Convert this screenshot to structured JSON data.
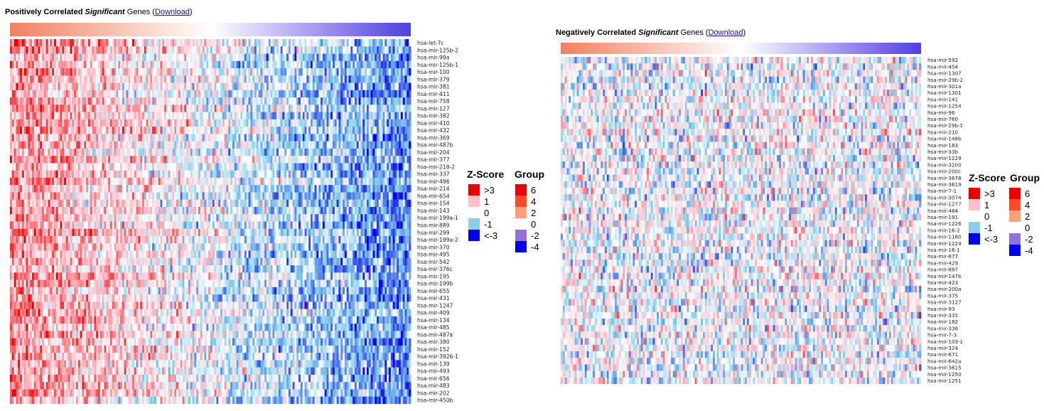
{
  "panels": [
    {
      "title_pre": "Positively Correlated ",
      "title_em": "Significant",
      "title_post": " Genes",
      "download_label": "Download"
    },
    {
      "title_pre": "Negatively Correlated ",
      "title_em": "Significant",
      "title_post": " Genes",
      "download_label": "Download"
    }
  ],
  "legend": {
    "zscore_title": "Z-Score",
    "group_title": "Group",
    "zscore_items": [
      {
        "label": ">3",
        "color": "#ee0000"
      },
      {
        "label": "1",
        "color": "#ffc0cb"
      },
      {
        "label": "0",
        "color": "#ffffff"
      },
      {
        "label": "-1",
        "color": "#87ceeb"
      },
      {
        "label": "<-3",
        "color": "#0000ee"
      }
    ],
    "group_items": [
      {
        "label": "6",
        "color": "#ee0000"
      },
      {
        "label": "4",
        "color": "#ff4a2a"
      },
      {
        "label": "2",
        "color": "#ffa07a"
      },
      {
        "label": "0",
        "color": "#ffffff"
      },
      {
        "label": "-2",
        "color": "#9370db"
      },
      {
        "label": "-4",
        "color": "#0000ee"
      }
    ]
  },
  "chart_data": [
    {
      "type": "heatmap",
      "title": "Positively Correlated Significant Genes",
      "color_scale": [
        "#ee0000",
        "#ffc0cb",
        "#ffffff",
        "#87ceeb",
        "#0000ee"
      ],
      "group_gradient": [
        "#f08060",
        "#ffffff",
        "#5040e0"
      ],
      "trend": "positive",
      "rows": [
        "hsa-let-7c",
        "hsa-mir-125b-2",
        "hsa-mir-99a",
        "hsa-mir-125b-1",
        "hsa-mir-100",
        "hsa-mir-379",
        "hsa-mir-381",
        "hsa-mir-411",
        "hsa-mir-758",
        "hsa-mir-127",
        "hsa-mir-382",
        "hsa-mir-410",
        "hsa-mir-432",
        "hsa-mir-369",
        "hsa-mir-487b",
        "hsa-mir-204",
        "hsa-mir-377",
        "hsa-mir-218-2",
        "hsa-mir-337",
        "hsa-mir-496",
        "hsa-mir-214",
        "hsa-mir-654",
        "hsa-mir-154",
        "hsa-mir-143",
        "hsa-mir-199a-1",
        "hsa-mir-889",
        "hsa-mir-299",
        "hsa-mir-199a-2",
        "hsa-mir-370",
        "hsa-mir-495",
        "hsa-mir-542",
        "hsa-mir-376c",
        "hsa-mir-195",
        "hsa-mir-199b",
        "hsa-mir-655",
        "hsa-mir-431",
        "hsa-mir-1247",
        "hsa-mir-409",
        "hsa-mir-134",
        "hsa-mir-485",
        "hsa-mir-487a",
        "hsa-mir-380",
        "hsa-mir-152",
        "hsa-mir-3926-1",
        "hsa-mir-139",
        "hsa-mir-493",
        "hsa-mir-656",
        "hsa-mir-483",
        "hsa-mir-202",
        "hsa-mir-450b"
      ]
    },
    {
      "type": "heatmap",
      "title": "Negatively Correlated Significant Genes",
      "color_scale": [
        "#ee0000",
        "#ffc0cb",
        "#ffffff",
        "#87ceeb",
        "#0000ee"
      ],
      "group_gradient": [
        "#f08060",
        "#ffffff",
        "#5040e0"
      ],
      "trend": "negative",
      "rows": [
        "hsa-mir-592",
        "hsa-mir-454",
        "hsa-mir-1307",
        "hsa-mir-29b-2",
        "hsa-mir-301a",
        "hsa-mir-1301",
        "hsa-mir-141",
        "hsa-mir-1254",
        "hsa-mir-96",
        "hsa-mir-760",
        "hsa-mir-29b-1",
        "hsa-mir-210",
        "hsa-mir-148b",
        "hsa-mir-183",
        "hsa-mir-33b",
        "hsa-mir-1229",
        "hsa-mir-3200",
        "hsa-mir-200c",
        "hsa-mir-3678",
        "hsa-mir-3619",
        "hsa-mir-7-1",
        "hsa-mir-3074",
        "hsa-mir-1277",
        "hsa-mir-484",
        "hsa-mir-191",
        "hsa-mir-1226",
        "hsa-mir-16-2",
        "hsa-mir-1180",
        "hsa-mir-1224",
        "hsa-mir-16-1",
        "hsa-mir-877",
        "hsa-mir-429",
        "hsa-mir-887",
        "hsa-mir-147b",
        "hsa-mir-423",
        "hsa-mir-200a",
        "hsa-mir-375",
        "hsa-mir-3127",
        "hsa-mir-93",
        "hsa-mir-331",
        "hsa-mir-182",
        "hsa-mir-338",
        "hsa-mir-7-3",
        "hsa-mir-103-2",
        "hsa-mir-324",
        "hsa-mir-671",
        "hsa-mir-642a",
        "hsa-mir-3615",
        "hsa-mir-1250",
        "hsa-mir-1251"
      ]
    }
  ]
}
